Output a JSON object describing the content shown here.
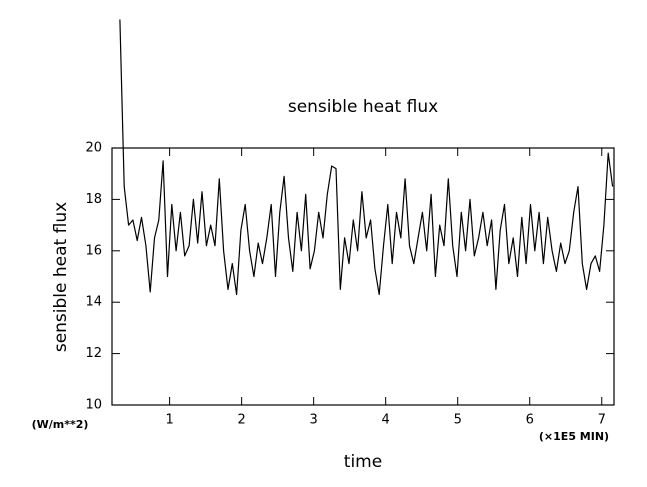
{
  "chart_data": {
    "type": "line",
    "title": "sensible heat flux",
    "y_label": "sensible heat flux",
    "x_label": "time",
    "y_unit": "(W/m**2)",
    "x_unit": "(×1E5 MIN)",
    "xlim": [
      0.2,
      7.17
    ],
    "ylim": [
      10,
      20
    ],
    "xticks": [
      1,
      2,
      3,
      4,
      5,
      6,
      7
    ],
    "yticks": [
      10,
      12,
      14,
      16,
      18,
      20
    ],
    "color": "#000000",
    "x": [
      0.31,
      0.37,
      0.43,
      0.49,
      0.55,
      0.61,
      0.67,
      0.73,
      0.79,
      0.85,
      0.91,
      0.97,
      1.03,
      1.09,
      1.15,
      1.21,
      1.27,
      1.33,
      1.39,
      1.45,
      1.51,
      1.57,
      1.63,
      1.69,
      1.75,
      1.81,
      1.87,
      1.93,
      1.99,
      2.05,
      2.11,
      2.17,
      2.23,
      2.29,
      2.35,
      2.41,
      2.47,
      2.53,
      2.59,
      2.65,
      2.71,
      2.77,
      2.83,
      2.89,
      2.95,
      3.01,
      3.07,
      3.13,
      3.19,
      3.25,
      3.31,
      3.37,
      3.43,
      3.49,
      3.55,
      3.61,
      3.67,
      3.73,
      3.79,
      3.85,
      3.91,
      3.97,
      4.03,
      4.09,
      4.15,
      4.21,
      4.27,
      4.33,
      4.39,
      4.45,
      4.51,
      4.57,
      4.63,
      4.69,
      4.75,
      4.81,
      4.87,
      4.93,
      4.99,
      5.05,
      5.11,
      5.17,
      5.23,
      5.29,
      5.35,
      5.41,
      5.47,
      5.53,
      5.59,
      5.65,
      5.71,
      5.77,
      5.83,
      5.89,
      5.95,
      6.01,
      6.07,
      6.13,
      6.19,
      6.25,
      6.31,
      6.37,
      6.43,
      6.49,
      6.55,
      6.61,
      6.67,
      6.73,
      6.79,
      6.85,
      6.91,
      6.97,
      7.03,
      7.09,
      7.15
    ],
    "values": [
      25,
      18.5,
      17.0,
      17.2,
      16.4,
      17.3,
      16.2,
      14.4,
      16.5,
      17.2,
      19.5,
      15.0,
      17.8,
      16.0,
      17.5,
      15.8,
      16.2,
      18.0,
      16.3,
      18.3,
      16.2,
      17.0,
      16.2,
      18.8,
      16.0,
      14.5,
      15.5,
      14.3,
      16.8,
      17.8,
      16.0,
      15.0,
      16.3,
      15.5,
      16.5,
      17.8,
      15.0,
      17.5,
      18.9,
      16.5,
      15.2,
      17.5,
      16.0,
      18.2,
      15.3,
      16.0,
      17.5,
      16.5,
      18.2,
      19.3,
      19.2,
      14.5,
      16.5,
      15.5,
      17.2,
      16.0,
      18.3,
      16.5,
      17.2,
      15.3,
      14.3,
      16.2,
      17.8,
      15.5,
      17.5,
      16.5,
      18.8,
      16.2,
      15.5,
      16.5,
      17.5,
      16.0,
      18.2,
      15.0,
      17.0,
      16.2,
      18.8,
      16.2,
      15.0,
      17.5,
      16.0,
      18.0,
      15.8,
      16.5,
      17.5,
      16.2,
      17.2,
      14.5,
      16.8,
      17.8,
      15.5,
      16.5,
      15.0,
      17.3,
      15.5,
      17.8,
      16.0,
      17.5,
      15.5,
      17.3,
      16.0,
      15.2,
      16.3,
      15.5,
      16.0,
      17.5,
      18.5,
      15.5,
      14.5,
      15.5,
      15.8,
      15.2,
      17.0,
      19.8,
      18.5
    ]
  }
}
